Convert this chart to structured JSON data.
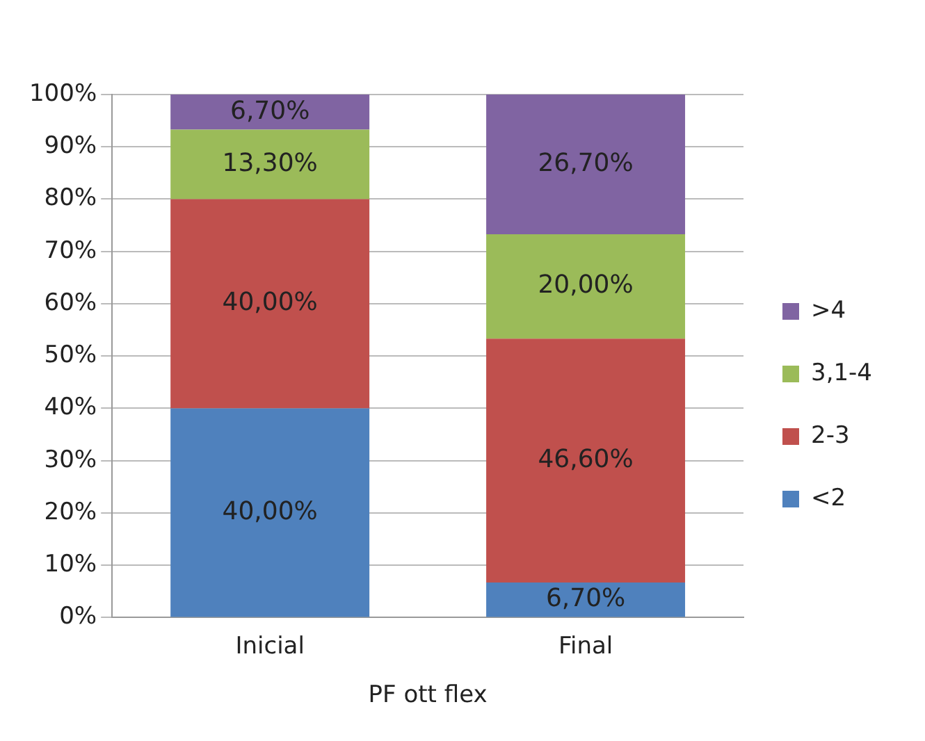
{
  "chart_data": {
    "type": "bar",
    "stacked": true,
    "xlabel": "PF ott flex",
    "categories": [
      "Inicial",
      "Final"
    ],
    "series": [
      {
        "name": "<2",
        "color": "#4f81bd",
        "values": [
          40,
          6.7
        ],
        "value_labels": [
          "40,00%",
          "6,70%"
        ]
      },
      {
        "name": "2-3",
        "color": "#c0504d",
        "values": [
          40,
          46.6
        ],
        "value_labels": [
          "40,00%",
          "46,60%"
        ]
      },
      {
        "name": "3,1-4",
        "color": "#9bbb59",
        "values": [
          13.3,
          20
        ],
        "value_labels": [
          "13,30%",
          "20,00%"
        ]
      },
      {
        "name": ">4",
        "color": "#8064a2",
        "values": [
          6.7,
          26.7
        ],
        "value_labels": [
          "6,70%",
          "26,70%"
        ]
      }
    ],
    "ylim": [
      0,
      100
    ],
    "yticks": [
      {
        "value": 0,
        "label": "0%"
      },
      {
        "value": 10,
        "label": "10%"
      },
      {
        "value": 20,
        "label": "20%"
      },
      {
        "value": 30,
        "label": "30%"
      },
      {
        "value": 40,
        "label": "40%"
      },
      {
        "value": 50,
        "label": "50%"
      },
      {
        "value": 60,
        "label": "60%"
      },
      {
        "value": 70,
        "label": "70%"
      },
      {
        "value": 80,
        "label": "80%"
      },
      {
        "value": 90,
        "label": "90%"
      },
      {
        "value": 100,
        "label": "100%"
      }
    ],
    "grid": "y",
    "legend": "right"
  }
}
